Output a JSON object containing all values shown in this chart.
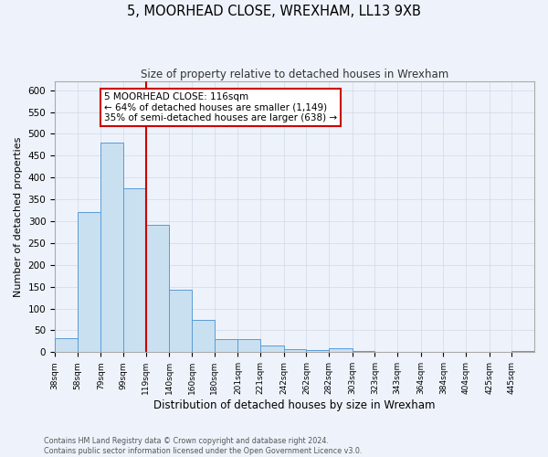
{
  "title": "5, MOORHEAD CLOSE, WREXHAM, LL13 9XB",
  "subtitle": "Size of property relative to detached houses in Wrexham",
  "xlabel": "Distribution of detached houses by size in Wrexham",
  "ylabel": "Number of detached properties",
  "bin_labels": [
    "38sqm",
    "58sqm",
    "79sqm",
    "99sqm",
    "119sqm",
    "140sqm",
    "160sqm",
    "180sqm",
    "201sqm",
    "221sqm",
    "242sqm",
    "262sqm",
    "282sqm",
    "303sqm",
    "323sqm",
    "343sqm",
    "364sqm",
    "384sqm",
    "404sqm",
    "425sqm",
    "445sqm"
  ],
  "bin_edges": [
    38,
    58,
    79,
    99,
    119,
    140,
    160,
    180,
    201,
    221,
    242,
    262,
    282,
    303,
    323,
    343,
    364,
    384,
    404,
    425,
    445,
    465
  ],
  "bar_heights": [
    32,
    322,
    481,
    375,
    291,
    144,
    75,
    31,
    29,
    16,
    7,
    5,
    10,
    2,
    1,
    1,
    1,
    0,
    0,
    0,
    2
  ],
  "bar_color": "#c9e0f0",
  "bar_edge_color": "#5b9bd5",
  "bg_color": "#eef3fb",
  "grid_color": "#d0d8e8",
  "vline_x": 119,
  "vline_color": "#cc0000",
  "annotation_title": "5 MOORHEAD CLOSE: 116sqm",
  "annotation_line1": "← 64% of detached houses are smaller (1,149)",
  "annotation_line2": "35% of semi-detached houses are larger (638) →",
  "annotation_box_color": "#ffffff",
  "annotation_box_edge": "#cc0000",
  "ylim": [
    0,
    620
  ],
  "yticks": [
    0,
    50,
    100,
    150,
    200,
    250,
    300,
    350,
    400,
    450,
    500,
    550,
    600
  ],
  "footer_line1": "Contains HM Land Registry data © Crown copyright and database right 2024.",
  "footer_line2": "Contains public sector information licensed under the Open Government Licence v3.0."
}
